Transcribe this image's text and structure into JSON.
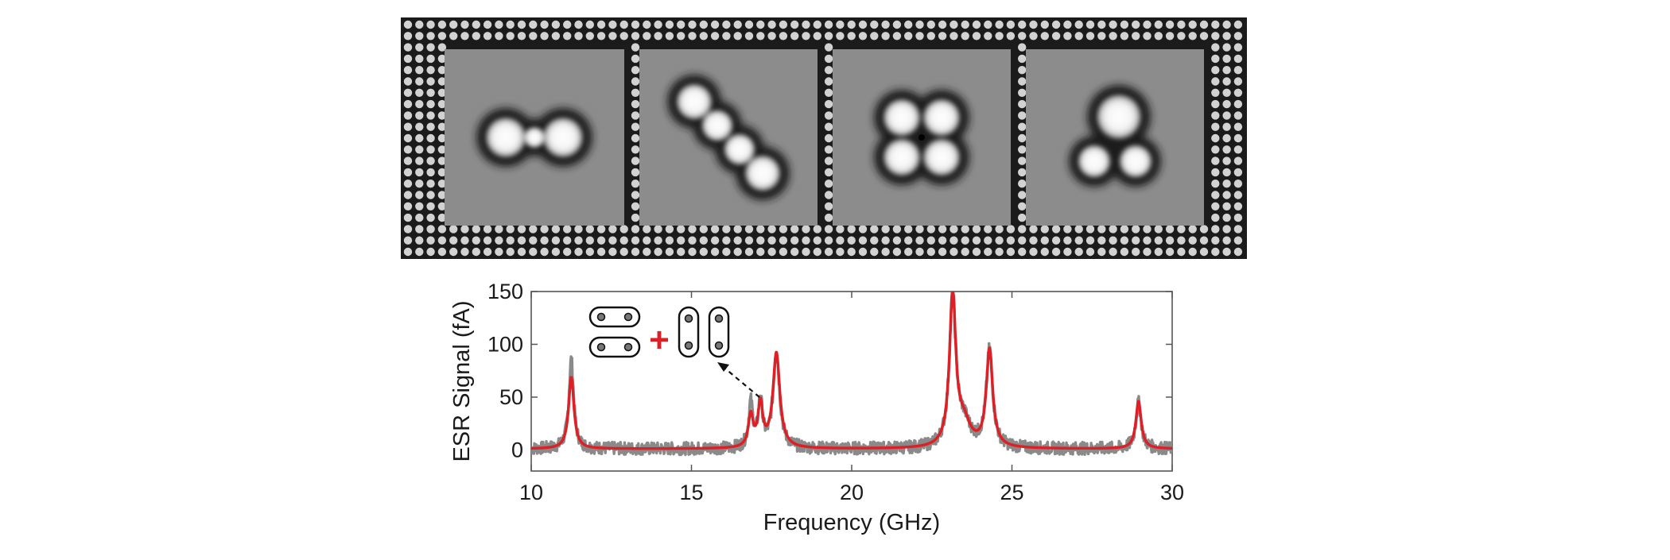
{
  "colors": {
    "panel_frame": "#1b1b1b",
    "frame_dot": "#d2d2d2",
    "tile_background": "#8c8c8c",
    "measured": "#8a8a8a",
    "fit": "#dd1f26",
    "axis": "#555555",
    "text": "#1a1a1a"
  },
  "images": {
    "description_free_tiles": [
      {
        "pattern": "two-lobes-horizontal"
      },
      {
        "pattern": "four-lobes-diagonal-chain"
      },
      {
        "pattern": "four-lobes-square"
      },
      {
        "pattern": "one-large-two-small"
      }
    ]
  },
  "inset": {
    "plus_symbol": "+",
    "icons": [
      "horizontal-dimer-icon",
      "horizontal-dimer-icon",
      "vertical-dimer-icon",
      "vertical-dimer-icon"
    ]
  },
  "chart_data": {
    "type": "line",
    "xlabel": "Frequency (GHz)",
    "ylabel": "ESR Signal (fA)",
    "xlim": [
      10,
      30
    ],
    "ylim": [
      -20,
      150
    ],
    "xticks": [
      10,
      15,
      20,
      25,
      30
    ],
    "yticks": [
      0,
      50,
      100,
      150
    ],
    "grid": false,
    "baseline": 1,
    "series": [
      {
        "role": "measured",
        "color": "#8a8a8a",
        "noise_amplitude": 6,
        "peaks": [
          {
            "center": 11.25,
            "height": 85,
            "width": 0.09
          },
          {
            "center": 16.85,
            "height": 42,
            "width": 0.08
          },
          {
            "center": 17.15,
            "height": 44,
            "width": 0.08
          },
          {
            "center": 17.65,
            "height": 92,
            "width": 0.12
          },
          {
            "center": 23.15,
            "height": 142,
            "width": 0.12
          },
          {
            "center": 23.5,
            "height": 22,
            "width": 0.25
          },
          {
            "center": 24.3,
            "height": 92,
            "width": 0.12
          },
          {
            "center": 28.95,
            "height": 44,
            "width": 0.1
          }
        ]
      },
      {
        "role": "fit",
        "color": "#dd1f26",
        "peaks": [
          {
            "center": 11.25,
            "height": 68,
            "width": 0.1
          },
          {
            "center": 16.85,
            "height": 30,
            "width": 0.09
          },
          {
            "center": 17.15,
            "height": 40,
            "width": 0.09
          },
          {
            "center": 17.65,
            "height": 90,
            "width": 0.13
          },
          {
            "center": 23.15,
            "height": 142,
            "width": 0.12
          },
          {
            "center": 23.5,
            "height": 22,
            "width": 0.25
          },
          {
            "center": 24.3,
            "height": 92,
            "width": 0.12
          },
          {
            "center": 28.95,
            "height": 45,
            "width": 0.1
          }
        ]
      }
    ]
  }
}
